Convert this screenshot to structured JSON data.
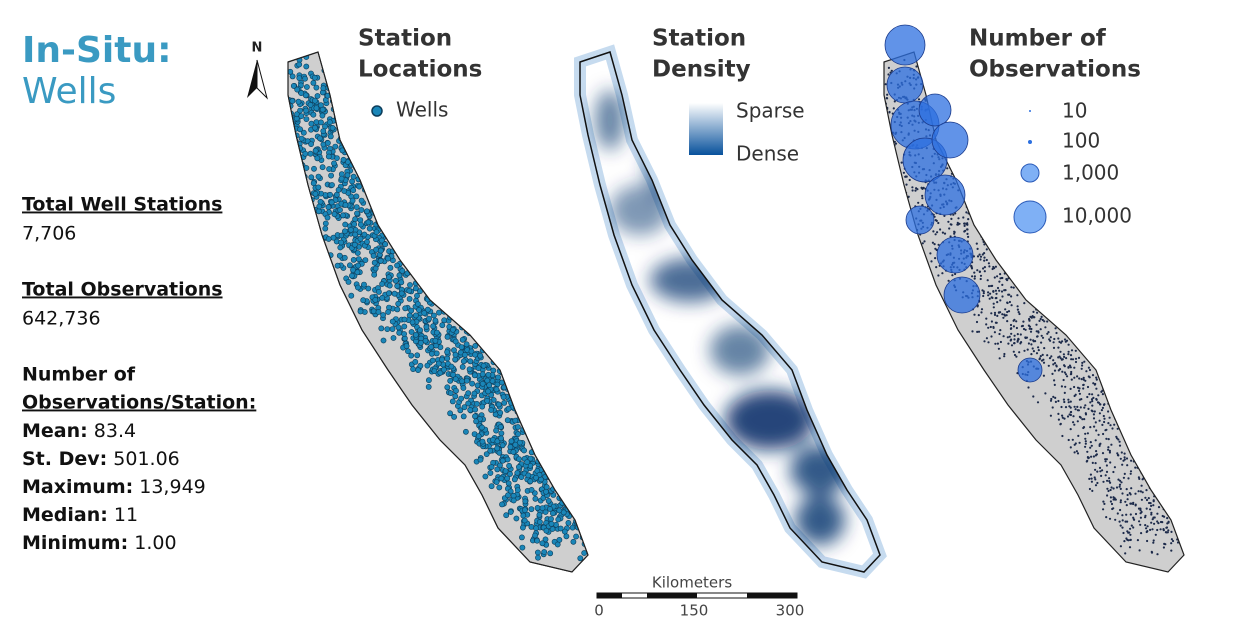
{
  "title": {
    "line1": "In-Situ:",
    "line2": "Wells"
  },
  "stats": [
    {
      "label": "Total Well Stations",
      "value": "7,706"
    },
    {
      "label": "Total Observations",
      "value": "642,736"
    }
  ],
  "per_station": {
    "heading_line1": "Number of",
    "heading_line2": "Observations/Station:",
    "rows": [
      {
        "label": "Mean:",
        "value": "83.4"
      },
      {
        "label": "St. Dev:",
        "value": "501.06"
      },
      {
        "label": "Maximum:",
        "value": "13,949"
      },
      {
        "label": "Median:",
        "value": "11"
      },
      {
        "label": "Minimum:",
        "value": "1.00"
      }
    ]
  },
  "north_arrow": "N",
  "panels": [
    {
      "title_line1": "Station",
      "title_line2": "Locations",
      "legend": [
        "Wells"
      ]
    },
    {
      "title_line1": "Station",
      "title_line2": "Density",
      "legend": [
        "Sparse",
        "Dense"
      ]
    },
    {
      "title_line1": "Number of",
      "title_line2": "Observations",
      "legend": [
        "10",
        "100",
        "1,000",
        "10,000"
      ]
    }
  ],
  "scale_bar": {
    "title": "Kilometers",
    "ticks": [
      "0",
      "150",
      "300"
    ]
  }
}
